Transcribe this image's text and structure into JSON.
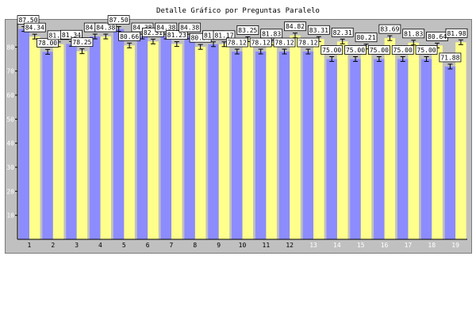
{
  "chart_data": {
    "type": "bar",
    "title": "Detalle Gráfico por Preguntas Paralelo",
    "categories": [
      "1",
      "2",
      "3",
      "4",
      "5",
      "6",
      "7",
      "8",
      "9",
      "10",
      "11",
      "12",
      "13",
      "14",
      "15",
      "16",
      "17",
      "18",
      "19"
    ],
    "ylim": [
      0,
      90
    ],
    "yticks": [
      10,
      20,
      30,
      40,
      50,
      60,
      70,
      80
    ],
    "grid": false,
    "series": [
      {
        "color": "#8c8cff",
        "values": [
          87.5,
          78.0,
          81.34,
          84.38,
          87.5,
          84.38,
          84.38,
          84.38,
          81.17,
          78.12,
          78.12,
          78.12,
          78.12,
          75.0,
          75.0,
          75.0,
          75.0,
          75.0,
          71.88
        ]
      },
      {
        "color": "#ffff8c",
        "values": [
          84.34,
          81.15,
          78.25,
          84.38,
          80.66,
          82.31,
          81.23,
          80.04,
          81.17,
          83.25,
          81.83,
          84.82,
          83.31,
          82.31,
          80.21,
          83.69,
          81.83,
          80.64,
          81.98
        ]
      }
    ],
    "category_label_colors": [
      "#000000",
      "#000000",
      "#000000",
      "#000000",
      "#000000",
      "#000000",
      "#000000",
      "#000000",
      "#000000",
      "#000000",
      "#000000",
      "#000000",
      "#ffffff",
      "#ffffff",
      "#ffffff",
      "#ffffff",
      "#ffffff",
      "#ffffff",
      "#ffffff"
    ]
  }
}
